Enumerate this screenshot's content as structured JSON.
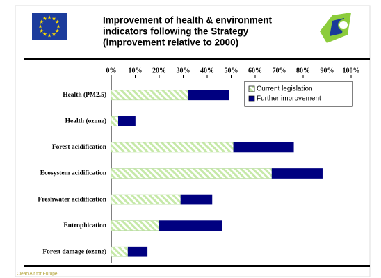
{
  "chart_data": {
    "type": "stacked-barh",
    "title": [
      "Improvement of health & environment",
      "indicators following the Strategy",
      "(improvement relative to 2000)"
    ],
    "footer": "Clean Air for Europe",
    "categories": [
      "Health (PM2.5)",
      "Health (ozone)",
      "Forest acidification",
      "Ecosystem acidification",
      "Freshwater acidification",
      "Eutrophication",
      "Forest damage (ozone)"
    ],
    "series": [
      {
        "name": "Current legislation",
        "color": "#c6e9a8",
        "values": [
          32,
          3,
          51,
          67,
          29,
          20,
          7
        ]
      },
      {
        "name": "Further improvement",
        "color": "#000080",
        "values": [
          17,
          7,
          25,
          21,
          13,
          26,
          8
        ]
      }
    ],
    "xlim": [
      0,
      100
    ],
    "xticks": [
      {
        "value": 0,
        "label": "0%"
      },
      {
        "value": 10,
        "label": "10%"
      },
      {
        "value": 20,
        "label": "20%"
      },
      {
        "value": 30,
        "label": "30%"
      },
      {
        "value": 40,
        "label": "40%"
      },
      {
        "value": 50,
        "label": "50%"
      },
      {
        "value": 60,
        "label": "60%"
      },
      {
        "value": 70,
        "label": "70%"
      },
      {
        "value": 80,
        "label": "80%"
      },
      {
        "value": 90,
        "label": "90%"
      },
      {
        "value": 100,
        "label": "100%"
      }
    ],
    "grid": false,
    "legend": "upper-right"
  }
}
